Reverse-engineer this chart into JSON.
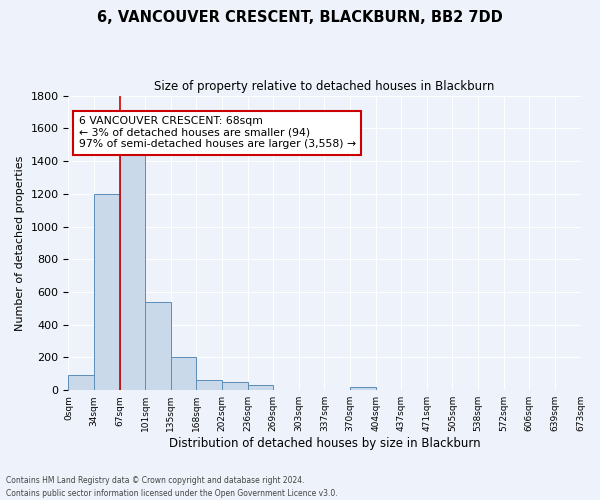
{
  "title": "6, VANCOUVER CRESCENT, BLACKBURN, BB2 7DD",
  "subtitle": "Size of property relative to detached houses in Blackburn",
  "xlabel": "Distribution of detached houses by size in Blackburn",
  "ylabel": "Number of detached properties",
  "bin_labels": [
    "0sqm",
    "34sqm",
    "67sqm",
    "101sqm",
    "135sqm",
    "168sqm",
    "202sqm",
    "236sqm",
    "269sqm",
    "303sqm",
    "337sqm",
    "370sqm",
    "404sqm",
    "437sqm",
    "471sqm",
    "505sqm",
    "538sqm",
    "572sqm",
    "606sqm",
    "639sqm",
    "673sqm"
  ],
  "bar_heights": [
    90,
    1200,
    1460,
    540,
    205,
    65,
    48,
    30,
    0,
    0,
    0,
    20,
    0,
    0,
    0,
    0,
    0,
    0,
    0,
    0
  ],
  "bar_color": "#c9d9ea",
  "bar_edge_color": "#5b8db8",
  "background_color": "#eef2fa",
  "grid_color": "#ffffff",
  "redline_color": "#cc0000",
  "annotation_title": "6 VANCOUVER CRESCENT: 68sqm",
  "annotation_line1": "← 3% of detached houses are smaller (94)",
  "annotation_line2": "97% of semi-detached houses are larger (3,558) →",
  "annotation_box_color": "#ffffff",
  "annotation_box_edge": "#cc0000",
  "ylim": [
    0,
    1800
  ],
  "yticks": [
    0,
    200,
    400,
    600,
    800,
    1000,
    1200,
    1400,
    1600,
    1800
  ],
  "footnote1": "Contains HM Land Registry data © Crown copyright and database right 2024.",
  "footnote2": "Contains public sector information licensed under the Open Government Licence v3.0."
}
